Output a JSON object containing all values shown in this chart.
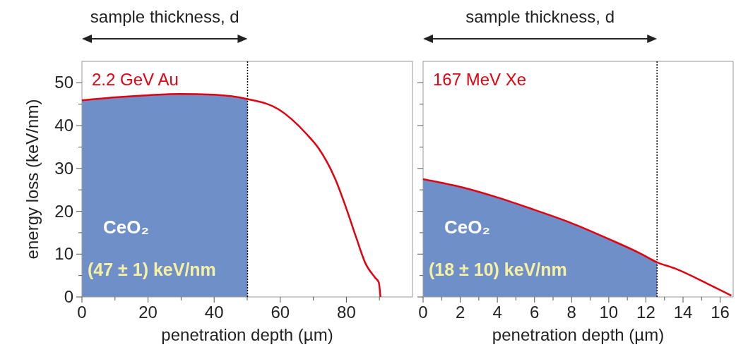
{
  "chart_data": [
    {
      "type": "line",
      "ylabel": "energy loss (keV/nm)",
      "xlabel": "penetration depth (µm)",
      "xlim": [
        0,
        100
      ],
      "ylim": [
        0,
        55
      ],
      "xticks": [
        0,
        {
          "value": 10,
          "label": null
        },
        20,
        {
          "value": 30,
          "label": null
        },
        40,
        {
          "value": 50,
          "label": null
        },
        60,
        {
          "value": 70,
          "label": null
        },
        80,
        {
          "value": 90,
          "label": null
        }
      ],
      "yticks": [
        0,
        {
          "value": 5,
          "label": null
        },
        10,
        {
          "value": 15,
          "label": null
        },
        20,
        {
          "value": 25,
          "label": null
        },
        30,
        {
          "value": 35,
          "label": null
        },
        40,
        {
          "value": 45,
          "label": null
        },
        50
      ],
      "series": [
        {
          "type": "area",
          "color": "#6f8fc9",
          "x": [
            0,
            10,
            20,
            29.6,
            40,
            50.1
          ],
          "values": [
            45.9,
            46.6,
            47.1,
            47.4,
            47.2,
            46.2
          ]
        },
        {
          "type": "line",
          "name": "2.2 GeV Au",
          "color": "#e3000f",
          "x": [
            0,
            10,
            20,
            29.6,
            40,
            50.1,
            59.5,
            68,
            71.6,
            76.6,
            80.1,
            83,
            85.8,
            88.7,
            89.8,
            90.3
          ],
          "values": [
            45.9,
            46.6,
            47.1,
            47.4,
            47.2,
            46.2,
            43.8,
            38,
            34.7,
            27.6,
            20.4,
            13.8,
            7.8,
            4.5,
            3.4,
            0
          ]
        }
      ],
      "ref_lines": [
        {
          "axis": "x",
          "value": 50.1,
          "label": "sample thickness, d",
          "color": "#000000",
          "line_style": "dotted"
        }
      ],
      "annotations": [
        "CeO₂",
        "(47 ± 1) keV/nm"
      ]
    },
    {
      "type": "line",
      "xlabel": "penetration depth (µm)",
      "xlim": [
        0,
        16.7
      ],
      "ylim": [
        0,
        55
      ],
      "tick_labels": "x",
      "xticks": [
        0,
        {
          "value": 1,
          "label": null
        },
        2,
        {
          "value": 3,
          "label": null
        },
        4,
        {
          "value": 5,
          "label": null
        },
        6,
        {
          "value": 7,
          "label": null
        },
        8,
        {
          "value": 9,
          "label": null
        },
        10,
        {
          "value": 11,
          "label": null
        },
        12,
        {
          "value": 13,
          "label": null
        },
        14,
        {
          "value": 15,
          "label": null
        },
        16
      ],
      "yticks": [
        0,
        {
          "value": 5,
          "label": null
        },
        10,
        {
          "value": 15,
          "label": null
        },
        20,
        {
          "value": 25,
          "label": null
        },
        30,
        {
          "value": 35,
          "label": null
        },
        40,
        {
          "value": 45,
          "label": null
        },
        50
      ],
      "series": [
        {
          "type": "area",
          "color": "#6f8fc9",
          "x": [
            0,
            2.09,
            4.03,
            5.96,
            7.9,
            9.96,
            11.77,
            12.6
          ],
          "values": [
            27.5,
            25.6,
            23.2,
            20.4,
            17.4,
            13.6,
            10,
            8.1
          ]
        },
        {
          "type": "line",
          "name": "167 MeV Xe",
          "color": "#e3000f",
          "x": [
            0,
            2.09,
            4.03,
            5.96,
            7.9,
            9.96,
            11.77,
            12.6,
            13.59,
            15.4,
            16.6
          ],
          "values": [
            27.5,
            25.6,
            23.2,
            20.4,
            17.4,
            13.6,
            10,
            8.1,
            6.6,
            2.9,
            0.3
          ]
        }
      ],
      "ref_lines": [
        {
          "axis": "x",
          "value": 12.6,
          "label": "sample thickness, d",
          "color": "#000000",
          "line_style": "dotted"
        }
      ],
      "annotations": [
        "CeO₂",
        "(18 ± 10) keV/nm"
      ]
    }
  ]
}
